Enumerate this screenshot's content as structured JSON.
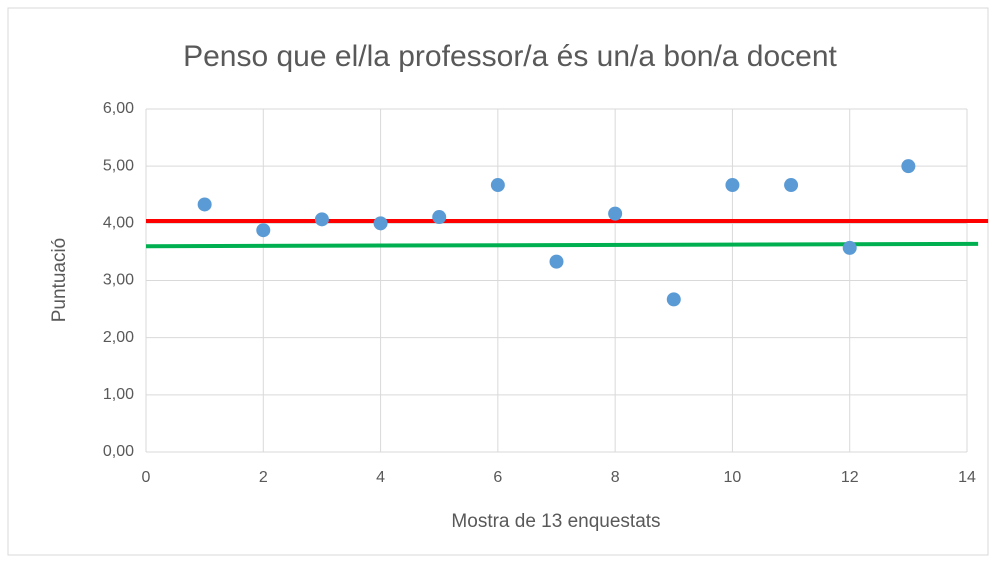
{
  "chart_data": {
    "type": "scatter",
    "title": "Penso que el/la professor/a és un/a bon/a docent",
    "xlabel": "Mostra de 13 enquestats",
    "ylabel": "Puntuació",
    "xlim": [
      0,
      14
    ],
    "xticks": [
      0,
      2,
      4,
      6,
      8,
      10,
      12,
      14
    ],
    "ylim": [
      0,
      6
    ],
    "yticks": [
      {
        "value": 0,
        "label": "0,00"
      },
      {
        "value": 1,
        "label": "1,00"
      },
      {
        "value": 2,
        "label": "2,00"
      },
      {
        "value": 3,
        "label": "3,00"
      },
      {
        "value": 4,
        "label": "4,00"
      },
      {
        "value": 5,
        "label": "5,00"
      },
      {
        "value": 6,
        "label": "6,00"
      }
    ],
    "grid": true,
    "series": [
      {
        "mode": "markers",
        "color": "#5b9bd5",
        "x": [
          1,
          2,
          3,
          4,
          5,
          6,
          7,
          8,
          9,
          10,
          11,
          12,
          13
        ],
        "values": [
          4.33,
          3.88,
          4.07,
          4.0,
          4.11,
          4.67,
          3.33,
          4.17,
          2.67,
          4.67,
          4.67,
          3.57,
          5.0
        ]
      },
      {
        "mode": "line",
        "color": "#ff0000",
        "x": [
          0,
          14.36
        ],
        "values": [
          4.04,
          4.04
        ]
      },
      {
        "mode": "line",
        "color": "#00b050",
        "x": [
          0,
          14.19
        ],
        "values": [
          3.6,
          3.64
        ]
      }
    ]
  }
}
